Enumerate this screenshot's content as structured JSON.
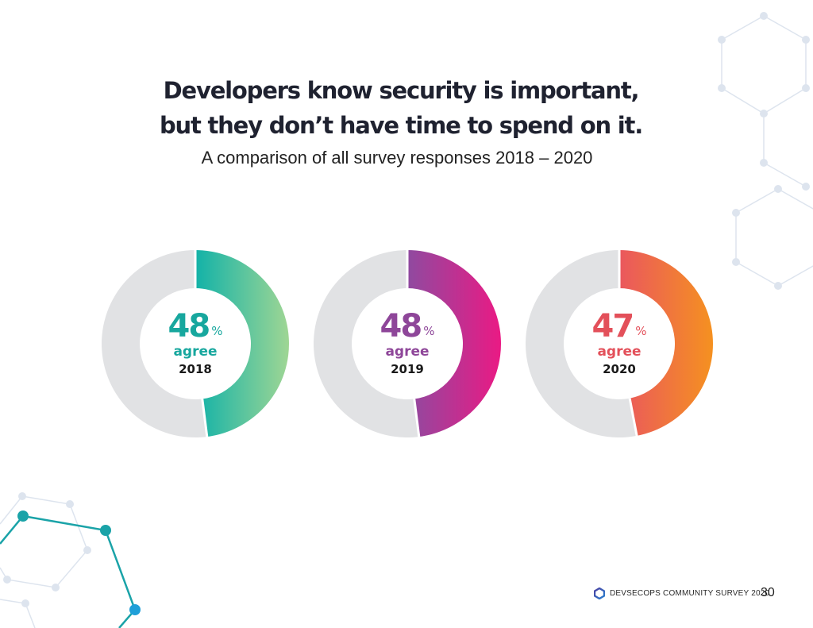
{
  "title_line1": "Developers know security is important,",
  "title_line2": "but they don’t have time to spend on it.",
  "subtitle": "A comparison of all survey responses 2018 – 2020",
  "footer": {
    "logo_icon": "hexagon-icon",
    "text": "DEVSECOPS COMMUNITY SURVEY 2020",
    "page_number": "30"
  },
  "colors": {
    "track": "#e1e2e4",
    "teal_start": "#12b2a8",
    "teal_end": "#9fd694",
    "purple_start": "#8f4aa0",
    "purple_end": "#ea1a84",
    "orange_start": "#ea575e",
    "orange_end": "#f59120",
    "hex_light": "#dde4ee",
    "hex_teal": "#1aa3a8",
    "hex_blue": "#1f9fd8"
  },
  "chart_data": {
    "type": "pie",
    "variant": "donut",
    "title": "Developers know security is important, but they don’t have time to spend on it.",
    "subtitle": "A comparison of all survey responses 2018 – 2020",
    "series": [
      {
        "name": "2018",
        "value": 48,
        "label": "agree",
        "percent_text": "48",
        "color_start": "#12b2a8",
        "color_end": "#9fd694",
        "text_color": "#17a79e"
      },
      {
        "name": "2019",
        "value": 48,
        "label": "agree",
        "percent_text": "48",
        "color_start": "#8f4aa0",
        "color_end": "#ea1a84",
        "text_color": "#8e4699"
      },
      {
        "name": "2020",
        "value": 47,
        "label": "agree",
        "percent_text": "47",
        "color_start": "#ea575e",
        "color_end": "#f59120",
        "text_color": "#e3505a"
      }
    ],
    "percent_symbol": "%",
    "max": 100
  }
}
